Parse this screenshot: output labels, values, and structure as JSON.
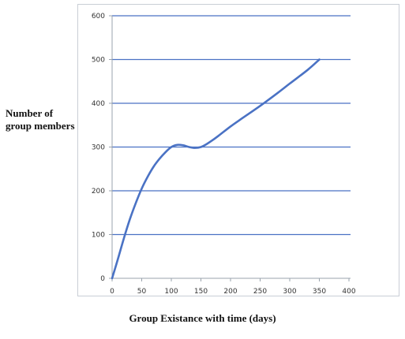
{
  "chart_data": {
    "type": "line",
    "title": "",
    "xlabel": "Group Existance with time (days)",
    "ylabel_lines": [
      "Number of",
      "group members"
    ],
    "xlim": [
      0,
      400
    ],
    "ylim": [
      0,
      600
    ],
    "x_ticks": [
      0,
      50,
      100,
      150,
      200,
      250,
      300,
      350,
      400
    ],
    "y_ticks": [
      0,
      100,
      200,
      300,
      400,
      500,
      600
    ],
    "grid": "horizontal",
    "line_color": "#4a72c4",
    "series": [
      {
        "x": [
          0,
          10,
          20,
          30,
          40,
          50,
          60,
          70,
          80,
          90,
          100,
          110,
          120,
          130,
          140,
          150,
          160,
          170,
          180,
          200,
          220,
          250,
          280,
          300,
          330,
          350
        ],
        "y": [
          0,
          45,
          92,
          135,
          172,
          205,
          232,
          255,
          273,
          288,
          300,
          305,
          304,
          300,
          298,
          300,
          307,
          316,
          326,
          347,
          366,
          394,
          424,
          445,
          476,
          500
        ]
      }
    ]
  }
}
